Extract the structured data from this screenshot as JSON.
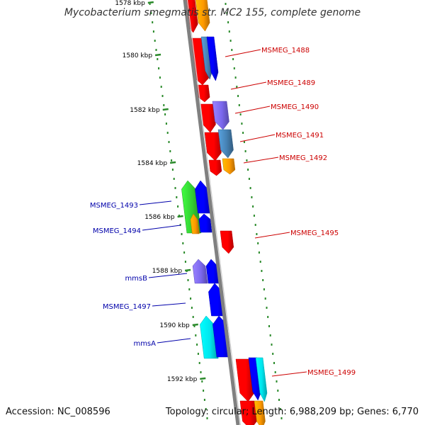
{
  "title": "Mycobacterium smegmatis str. MC2 155, complete genome",
  "footer": {
    "accession": "Accession: NC_008596",
    "topology": "Topology: circular; Length: 6,988,209 bp; Genes: 6,770"
  },
  "ticks": [
    "1578 kbp",
    "1580 kbp",
    "1582 kbp",
    "1584 kbp",
    "1586 kbp",
    "1588 kbp",
    "1590 kbp",
    "1592 kbp"
  ],
  "gene_labels_reverse": [
    "MSMEG_1488",
    "MSMEG_1489",
    "MSMEG_1490",
    "MSMEG_1491",
    "MSMEG_1492",
    "MSMEG_1495",
    "MSMEG_1499"
  ],
  "gene_labels_forward": [
    "MSMEG_1493",
    "MSMEG_1494",
    "mmsB",
    "MSMEG_1497",
    "mmsA"
  ],
  "colors": {
    "label_reverse": "#cc0000",
    "label_forward": "#0000aa",
    "backbone": "#808080",
    "ruler_dots": "#2a8a2a",
    "red": "#ff0000",
    "orange": "#ff9900",
    "blue": "#0000ff",
    "steel": "#4682b4",
    "purple": "#7b68ee",
    "green": "#33cc33",
    "cyan": "#00e5ee"
  }
}
